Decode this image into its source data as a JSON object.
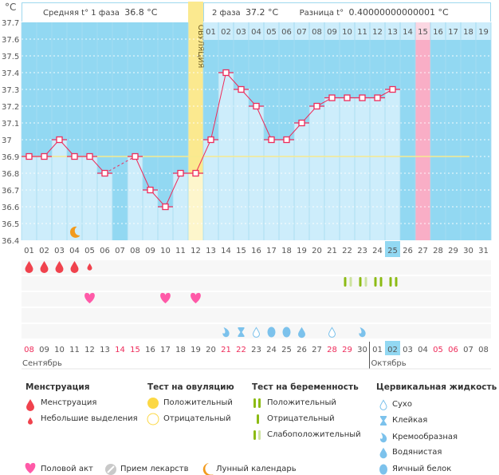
{
  "unit_label": "°C",
  "header": {
    "phase1_label": "Средняя t° 1 фаза",
    "phase1_value": "36.8 °C",
    "phase2_label": "2 фаза",
    "phase2_value": "37.2 °C",
    "diff_label": "Разница t°",
    "diff_value": "0.40000000000001 °C"
  },
  "chart_data": {
    "type": "line",
    "ylim": [
      36.4,
      37.7
    ],
    "yticks": [
      "37.7",
      "37.6",
      "37.5",
      "37.4",
      "37.3",
      "37.2",
      "37.1",
      "37",
      "36.9",
      "36.8",
      "36.7",
      "36.6",
      "36.5",
      "36.4"
    ],
    "cycle_days": [
      "01",
      "02",
      "03",
      "04",
      "05",
      "06",
      "07",
      "08",
      "09",
      "10",
      "11",
      "12",
      "13",
      "14",
      "15",
      "16",
      "17",
      "18",
      "19",
      "20",
      "21",
      "22",
      "23",
      "24",
      "25",
      "26",
      "27",
      "28",
      "29",
      "30",
      "31"
    ],
    "temperatures": [
      36.9,
      36.9,
      37.0,
      36.9,
      36.9,
      36.8,
      null,
      36.9,
      36.7,
      36.6,
      36.8,
      36.8,
      37.0,
      37.4,
      37.3,
      37.2,
      37.0,
      37.0,
      37.1,
      37.2,
      37.25,
      37.25,
      37.25,
      37.25,
      37.3
    ],
    "coverline": 36.9,
    "ovulation_day": 12,
    "ovulation_label": "ОВУЛЯЦИЯ",
    "phase2_day_labels": [
      "01",
      "02",
      "03",
      "04",
      "05",
      "06",
      "07",
      "08",
      "09",
      "10",
      "11",
      "12",
      "13",
      "14",
      "15",
      "16",
      "17",
      "18",
      "19"
    ],
    "expected_period_day": 27,
    "today_day": 25,
    "moon_day": 4,
    "grid": true
  },
  "events": {
    "menstruation": [
      {
        "day": 1,
        "type": "heavy"
      },
      {
        "day": 2,
        "type": "heavy"
      },
      {
        "day": 3,
        "type": "heavy"
      },
      {
        "day": 4,
        "type": "heavy"
      },
      {
        "day": 5,
        "type": "spotting"
      }
    ],
    "pregnancy_tests": [
      {
        "day": 22,
        "type": "weak"
      },
      {
        "day": 23,
        "type": "weak"
      },
      {
        "day": 24,
        "type": "positive"
      },
      {
        "day": 25,
        "type": "positive"
      }
    ],
    "intercourse_days": [
      5,
      10,
      12
    ],
    "fluid": [
      {
        "day": 14,
        "type": "creamy"
      },
      {
        "day": 15,
        "type": "sticky"
      },
      {
        "day": 16,
        "type": "dry"
      },
      {
        "day": 17,
        "type": "eggwhite"
      },
      {
        "day": 18,
        "type": "eggwhite"
      },
      {
        "day": 19,
        "type": "watery"
      },
      {
        "day": 21,
        "type": "dry"
      },
      {
        "day": 23,
        "type": "creamy"
      }
    ]
  },
  "calendar": {
    "dates": [
      "08",
      "09",
      "10",
      "11",
      "12",
      "13",
      "14",
      "15",
      "16",
      "17",
      "18",
      "19",
      "20",
      "21",
      "22",
      "23",
      "24",
      "25",
      "26",
      "27",
      "28",
      "29",
      "30",
      "01",
      "02",
      "03",
      "04",
      "05",
      "06",
      "07",
      "08"
    ],
    "weekend_indices": [
      0,
      6,
      7,
      13,
      14,
      20,
      21,
      27,
      28
    ],
    "today_index": 24,
    "month1": "Сентябрь",
    "month2": "Октябрь"
  },
  "colors": {
    "bg_dark": "#92d8f2",
    "bar_light": "#cdedfb",
    "ovulation": "#fbe98f",
    "period": "#f9aec6",
    "line": "#ee2b5a",
    "coverline": "#f6ea8f",
    "blood": "#f0424d",
    "test_dark": "#8cbb14",
    "test_light": "#cde3a0",
    "heart": "#ff5aa8",
    "fluid": "#7cc2ec",
    "moon": "#f29a1c"
  },
  "legend": {
    "menstruation": {
      "title": "Менструация",
      "items": [
        "Менструация",
        "Небольшие выделения"
      ]
    },
    "ovulation_test": {
      "title": "Тест на овуляцию",
      "items": [
        "Положительный",
        "Отрицательный"
      ]
    },
    "pregnancy_test": {
      "title": "Тест на беременность",
      "items": [
        "Положительный",
        "Отрицательный",
        "Слабоположительный"
      ]
    },
    "fluid": {
      "title": "Цервикальная жидкость",
      "items": [
        "Сухо",
        "Клейкая",
        "Кремообразная",
        "Водянистая",
        "Яичный белок"
      ]
    },
    "other": [
      "Половой акт",
      "Прием лекарств",
      "Лунный календарь"
    ]
  }
}
